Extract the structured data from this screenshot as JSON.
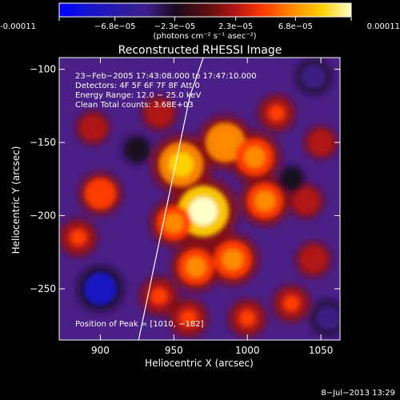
{
  "colorbar": {
    "tick_labels": [
      "-0.00011",
      "−6.8e−05",
      "−2.3e−05",
      "2.3e−05",
      "6.8e−05",
      "0.00011"
    ],
    "tick_values": [
      -0.00011,
      -6.8e-05,
      -2.3e-05,
      2.3e-05,
      6.8e-05,
      0.00011
    ],
    "range": [
      -0.00011,
      0.00011
    ],
    "unit_label": "(photons cm⁻² s⁻¹ asec⁻²)",
    "stops": [
      "#0000ff",
      "#1414d0",
      "#2a1aa8",
      "#3d1f8a",
      "#1a0a1e",
      "#550f0f",
      "#b01414",
      "#ff3c00",
      "#ff8a00",
      "#ffd000",
      "#ffffc8"
    ]
  },
  "chart_data": {
    "type": "heatmap",
    "title": "Reconstructed RHESSI Image",
    "xlabel": "Heliocentric X (arcsec)",
    "ylabel": "Heliocentric Y (arcsec)",
    "xlim": [
      872,
      1063
    ],
    "ylim": [
      -285,
      -92
    ],
    "x_ticks": [
      900,
      950,
      1000,
      1050
    ],
    "y_ticks": [
      -100,
      -150,
      -200,
      -250
    ],
    "x_tick_labels": [
      "900",
      "950",
      "1000",
      "1050"
    ],
    "y_tick_labels": [
      "−100",
      "−150",
      "−200",
      "−250"
    ],
    "peak_position": [
      1010,
      -182
    ],
    "limb_line": [
      [
        926,
        -285
      ],
      [
        961,
        -118
      ],
      [
        970,
        -92
      ]
    ],
    "annotations": [
      "23−Feb−2005 17:43:08.000 to 17:47:10.000",
      "Detectors: 4F 5F 6F 7F 8F  Att 0",
      "Energy Range: 12.0 − 25.0 keV",
      "Clean     Total counts: 3.68E+03"
    ],
    "peak_label": "Position of Peak = [1010, −182]",
    "sources": [
      {
        "x": 970,
        "y": -197,
        "value": 0.00011
      },
      {
        "x": 955,
        "y": -165,
        "value": 9e-05
      },
      {
        "x": 985,
        "y": -150,
        "value": 7.5e-05
      },
      {
        "x": 1005,
        "y": -160,
        "value": 7e-05
      },
      {
        "x": 1012,
        "y": -190,
        "value": 6.5e-05
      },
      {
        "x": 990,
        "y": -230,
        "value": 7e-05
      },
      {
        "x": 965,
        "y": -235,
        "value": 6.5e-05
      },
      {
        "x": 950,
        "y": -205,
        "value": 6e-05
      },
      {
        "x": 940,
        "y": -255,
        "value": 4e-05
      },
      {
        "x": 960,
        "y": -270,
        "value": 4e-05
      },
      {
        "x": 1000,
        "y": -270,
        "value": 3.8e-05
      },
      {
        "x": 1030,
        "y": -260,
        "value": 3.6e-05
      },
      {
        "x": 1045,
        "y": -230,
        "value": 3.2e-05
      },
      {
        "x": 1040,
        "y": -190,
        "value": 3e-05
      },
      {
        "x": 1050,
        "y": -150,
        "value": 2.6e-05
      },
      {
        "x": 1020,
        "y": -130,
        "value": 3.6e-05
      },
      {
        "x": 940,
        "y": -130,
        "value": 3e-05
      },
      {
        "x": 900,
        "y": -185,
        "value": 5e-05
      },
      {
        "x": 885,
        "y": -215,
        "value": 3.8e-05
      },
      {
        "x": 895,
        "y": -140,
        "value": 2.8e-05
      },
      {
        "x": 900,
        "y": -250,
        "value": -8e-05
      },
      {
        "x": 1045,
        "y": -105,
        "value": -5e-05
      },
      {
        "x": 1055,
        "y": -270,
        "value": -5e-05
      },
      {
        "x": 925,
        "y": -155,
        "value": -3e-05
      },
      {
        "x": 1030,
        "y": -175,
        "value": -2.5e-05
      }
    ]
  },
  "footer": {
    "timestamp": "8−Jul−2013 13:29"
  }
}
